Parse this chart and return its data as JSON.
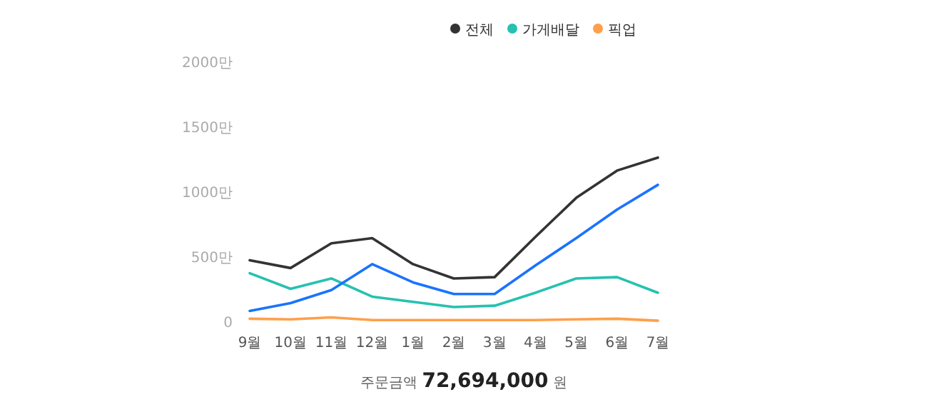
{
  "chart_data": {
    "type": "line",
    "categories": [
      "9월",
      "10월",
      "11월",
      "12월",
      "1월",
      "2월",
      "3월",
      "4월",
      "5월",
      "6월",
      "7월"
    ],
    "series": [
      {
        "name": "전체",
        "color": "#333333",
        "values": [
          470,
          410,
          600,
          640,
          440,
          330,
          340,
          650,
          950,
          1160,
          1260
        ]
      },
      {
        "name": "가게배달",
        "color": "#26c1b0",
        "values": [
          370,
          250,
          330,
          190,
          150,
          110,
          120,
          220,
          330,
          340,
          220
        ]
      },
      {
        "name": "픽업",
        "color": "#ff9f4a",
        "values": [
          20,
          15,
          30,
          10,
          10,
          10,
          10,
          10,
          15,
          20,
          5
        ]
      },
      {
        "color": "#1a73ff",
        "values": [
          80,
          140,
          240,
          440,
          300,
          210,
          210,
          430,
          640,
          860,
          1050
        ]
      }
    ],
    "ylim": [
      0,
      2000
    ],
    "yticks": [
      0,
      {
        "value": 500,
        "label": "500만"
      },
      {
        "value": 1000,
        "label": "1000만"
      },
      {
        "value": 1500,
        "label": "1500만"
      },
      {
        "value": 2000,
        "label": "2000만"
      }
    ],
    "grid": false,
    "legend": "top right",
    "marker": "none",
    "line_style": "solid",
    "annotations": [
      "주문금액 72,694,000 원"
    ]
  }
}
